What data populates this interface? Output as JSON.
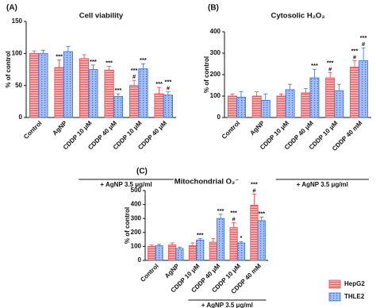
{
  "chart_data": [
    {
      "type": "bar",
      "panel": "(A)",
      "title": "Cell viability",
      "ylabel": "% of control",
      "categories": [
        "Control",
        "AgNP",
        "CDDP 10 μM",
        "CDDP 40 μM",
        "CDDP 10 μM",
        "CDDP 40 μM"
      ],
      "ylim": [
        0,
        150
      ],
      "yticks": [
        0,
        50,
        100,
        150
      ],
      "group": {
        "label": "+ AgNP 3.5 μg/ml",
        "categories": [
          2,
          5
        ]
      },
      "series": [
        {
          "color": "#e8474c",
          "values": [
            100,
            78,
            92,
            74,
            50,
            37
          ],
          "errors": [
            4,
            12,
            6,
            6,
            8,
            10
          ],
          "annotations": [
            null,
            [
              "***"
            ],
            null,
            [
              "***"
            ],
            [
              "***",
              "#"
            ],
            [
              "***"
            ]
          ]
        },
        {
          "color": "#3a6fd8",
          "values": [
            100,
            103,
            75,
            33,
            76,
            35
          ],
          "errors": [
            5,
            8,
            7,
            4,
            8,
            5
          ],
          "annotations": [
            null,
            null,
            [
              "***"
            ],
            [
              "***"
            ],
            [
              "***"
            ],
            [
              "***",
              "#"
            ]
          ]
        }
      ]
    },
    {
      "type": "bar",
      "panel": "(B)",
      "title": "Cytosolic H₂O₂",
      "ylabel": "% of control",
      "categories": [
        "Control",
        "AgNP",
        "CDDP 10 μM",
        "CDDP 40 μM",
        "CDDP 10 μM",
        "CDDP 40 mM"
      ],
      "ylim": [
        0,
        400
      ],
      "yticks": [
        0,
        100,
        200,
        300,
        400
      ],
      "group": {
        "label": "+ AgNP 3.5 μg/ml",
        "categories": [
          2,
          5
        ]
      },
      "series": [
        {
          "color": "#e8474c",
          "values": [
            100,
            100,
            100,
            115,
            185,
            235
          ],
          "errors": [
            10,
            20,
            10,
            20,
            25,
            30
          ],
          "annotations": [
            null,
            null,
            null,
            null,
            [
              "***",
              "#"
            ],
            [
              "***",
              "#"
            ]
          ]
        },
        {
          "color": "#3a6fd8",
          "values": [
            95,
            80,
            130,
            185,
            125,
            265
          ],
          "errors": [
            25,
            30,
            25,
            40,
            30,
            60
          ],
          "annotations": [
            null,
            null,
            null,
            [
              "***"
            ],
            null,
            [
              "***",
              "#"
            ]
          ]
        }
      ]
    },
    {
      "type": "bar",
      "panel": "(C)",
      "title": "Mitochondrial O₂⁻",
      "ylabel": "% of control",
      "categories": [
        "Control",
        "AgNP",
        "CDDP 10 μM",
        "CDDP 40 μM",
        "CDDP 10 μM",
        "CDDP 40 mM"
      ],
      "ylim": [
        0,
        500
      ],
      "yticks": [
        0,
        100,
        200,
        300,
        400,
        500
      ],
      "group": {
        "label": "+ AgNP 3.5 μg/ml",
        "categories": [
          2,
          5
        ]
      },
      "legend": "bottom-right",
      "series": [
        {
          "name": "HepG2",
          "color": "#e8474c",
          "values": [
            100,
            110,
            105,
            130,
            235,
            395
          ],
          "errors": [
            10,
            15,
            20,
            25,
            35,
            80
          ],
          "annotations": [
            null,
            null,
            null,
            null,
            [
              "***",
              "#"
            ],
            [
              "***",
              "#"
            ]
          ]
        },
        {
          "name": "THLE2",
          "color": "#3a6fd8",
          "values": [
            105,
            85,
            145,
            300,
            125,
            285
          ],
          "errors": [
            10,
            10,
            10,
            30,
            10,
            25
          ],
          "annotations": [
            null,
            null,
            [
              "***"
            ],
            [
              "***"
            ],
            [
              "*"
            ],
            [
              "***"
            ]
          ]
        }
      ]
    }
  ]
}
